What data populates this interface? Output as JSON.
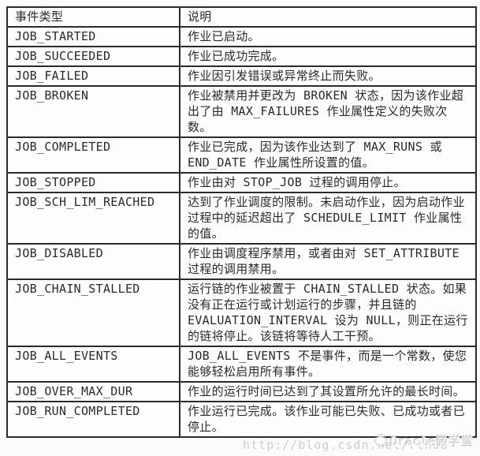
{
  "table": {
    "headers": [
      "事件类型",
      "说明"
    ],
    "rows": [
      {
        "event": "JOB_STARTED",
        "desc": "作业已启动。"
      },
      {
        "event": "JOB_SUCCEEDED",
        "desc": "作业已成功完成。"
      },
      {
        "event": "JOB_FAILED",
        "desc": "作业因引发错误或异常终止而失败。"
      },
      {
        "event": "JOB_BROKEN",
        "desc": "作业被禁用并更改为 BROKEN 状态，因为该作业超出了由 MAX_FAILURES 作业属性定义的失败次数。"
      },
      {
        "event": "JOB_COMPLETED",
        "desc": "作业已完成，因为该作业达到了 MAX_RUNS 或 END_DATE 作业属性所设置的值。"
      },
      {
        "event": "JOB_STOPPED",
        "desc": "作业由对 STOP_JOB 过程的调用停止。"
      },
      {
        "event": "JOB_SCH_LIM_REACHED",
        "desc": "达到了作业调度的限制。未启动作业，因为启动作业过程中的延迟超出了 SCHEDULE_LIMIT 作业属性的值。"
      },
      {
        "event": "JOB_DISABLED",
        "desc": "作业由调度程序禁用，或者由对 SET_ATTRIBUTE 过程的调用禁用。"
      },
      {
        "event": "JOB_CHAIN_STALLED",
        "desc": "运行链的作业被置于 CHAIN_STALLED 状态。如果没有正在运行或计划运行的步骤，并且链的 EVALUATION_INTERVAL 设为 NULL，则正在运行的链将停止。该链将等待人工干预。"
      },
      {
        "event": "JOB_ALL_EVENTS",
        "desc": "JOB_ALL_EVENTS 不是事件，而是一个常数，使您能够轻松启用所有事件。"
      },
      {
        "event": "JOB_OVER_MAX_DUR",
        "desc": "作业的运行时间已达到了其设置所允许的最长时间。"
      },
      {
        "event": "JOB_RUN_COMPLETED",
        "desc": "作业运行已完成。该作业可能已失败、已成功或者已停止。"
      }
    ]
  },
  "watermark": {
    "url": "http://blog.csdn.net/rlhua",
    "brand": "Oracle微学堂",
    "logo_icon": "csdn-circle-logo"
  },
  "colors": {
    "border": "#2b2b2b",
    "text": "#2a2a2a",
    "background": "#fbfbfb",
    "watermark_gray": "#bebebe"
  }
}
